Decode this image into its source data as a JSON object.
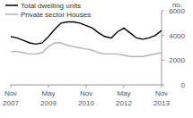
{
  "chart_data": {
    "type": "line",
    "y_label": "no.",
    "categories": [
      "Nov 2007",
      null,
      null,
      null,
      null,
      null,
      "May 2009",
      null,
      null,
      null,
      null,
      null,
      "Nov 2010",
      null,
      null,
      null,
      null,
      null,
      "May 2012",
      null,
      null,
      null,
      null,
      null,
      "Nov 2013"
    ],
    "series": [
      {
        "name": "Total dwelling units",
        "color": "#000000",
        "values": [
          3900,
          3800,
          3600,
          3400,
          3300,
          3400,
          3900,
          4500,
          5000,
          5100,
          5100,
          5000,
          4800,
          4600,
          4200,
          3900,
          3800,
          4300,
          4600,
          4200,
          3800,
          3700,
          3800,
          4000,
          4400
        ]
      },
      {
        "name": "Private sector Houses",
        "color": "#b3b3b3",
        "values": [
          2700,
          2700,
          2600,
          2500,
          2500,
          2600,
          3100,
          3400,
          3400,
          3200,
          3100,
          3000,
          2900,
          2800,
          2600,
          2500,
          2500,
          2500,
          2400,
          2300,
          2300,
          2300,
          2400,
          2500,
          2600
        ]
      }
    ],
    "ylim": [
      0,
      6000
    ],
    "yticks": [
      0,
      {
        "value": 2000,
        "label": "2000"
      },
      {
        "value": 4000,
        "label": "4000"
      },
      {
        "value": 6000,
        "label": "6000"
      }
    ],
    "grid": false,
    "legend": "top-left"
  }
}
